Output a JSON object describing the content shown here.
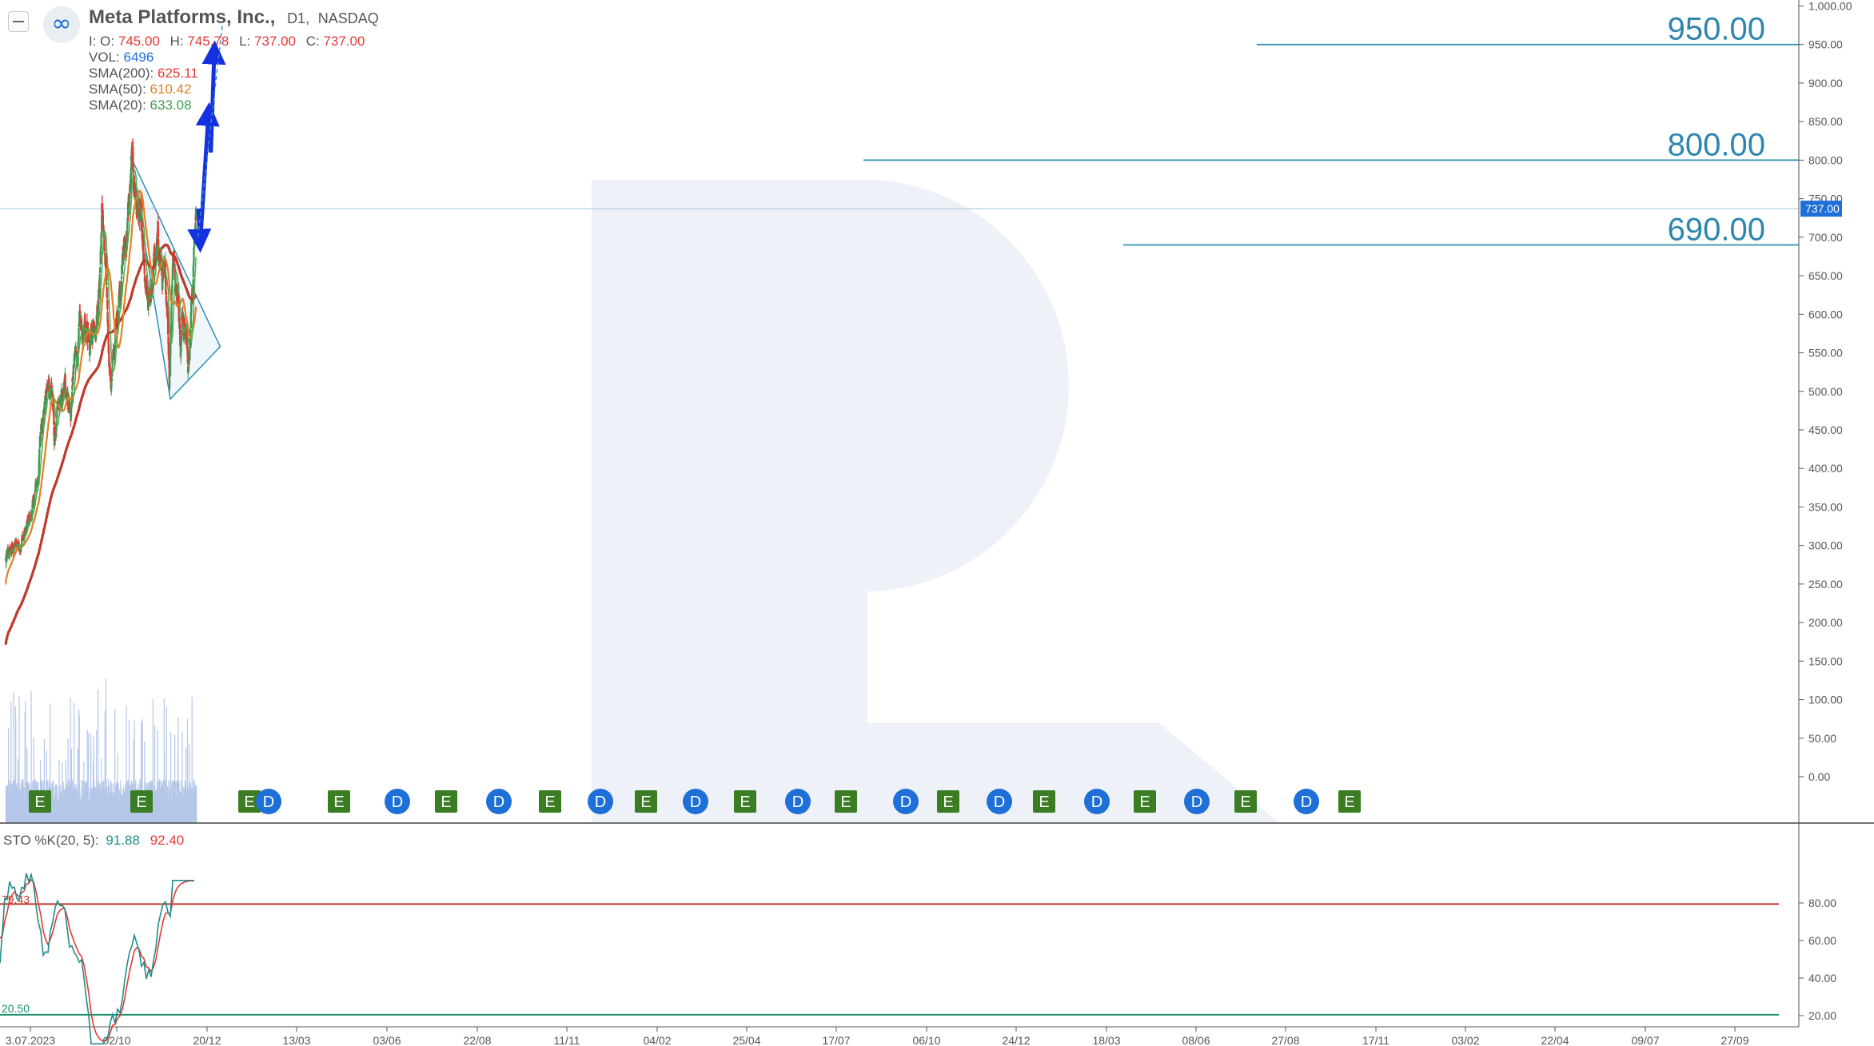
{
  "header": {
    "logo_glyph": "∞",
    "logo_icon": "meta-logo-icon",
    "menu_icon": "collapse-menu-icon",
    "company": "Meta Platforms, Inc.,",
    "timeframe": "D1,",
    "exchange": "NASDAQ",
    "ohlc": {
      "o_label": "I: O:",
      "o": "745.00",
      "h_label": "H:",
      "h": "745.78",
      "l_label": "L:",
      "l": "737.00",
      "c_label": "C:",
      "c": "737.00"
    },
    "vol_label": "VOL:",
    "vol": "6496",
    "sma200_label": "SMA(200):",
    "sma200": "625.11",
    "sma50_label": "SMA(50):",
    "sma50": "610.42",
    "sma20_label": "SMA(20):",
    "sma20": "633.08"
  },
  "stochastic": {
    "label": "STO %K(20, 5):",
    "k": "91.88",
    "d": "92.40",
    "upper_line_label": "79.43",
    "lower_line_label": "20.50",
    "upper_level": 79.43,
    "lower_level": 20.5
  },
  "colors": {
    "sma200": "#c0392b",
    "sma50": "#e67e22",
    "sma20": "#4caf50",
    "candle_up": "#3c9b54",
    "candle_down": "#e53935",
    "level_lines": "#2e8fb3",
    "target_text": "#2d86ad",
    "triangle_fill": "#e3f0f7",
    "arrows": "#1430e0",
    "earnings_badge": "#3a7d22",
    "dividend_badge": "#1e6fd8",
    "volume": "#b5c7e8",
    "price_tag": "#1e6fd8"
  },
  "chart_data": {
    "type": "candlestick",
    "title": "Meta Platforms, Inc., D1, NASDAQ",
    "x_tick_labels": [
      "3.07.2023",
      "02/10",
      "20/12",
      "13/03",
      "03/06",
      "22/08",
      "11/11",
      "04/02",
      "25/04",
      "17/07",
      "06/10",
      "24/12",
      "18/03",
      "08/06",
      "27/08",
      "17/11",
      "03/02",
      "22/04",
      "09/07",
      "27/09"
    ],
    "y_tick_labels": [
      "1,000.00",
      "950.00",
      "900.00",
      "850.00",
      "800.00",
      "750.00",
      "700.00",
      "650.00",
      "600.00",
      "550.00",
      "500.00",
      "450.00",
      "400.00",
      "350.00",
      "300.00",
      "250.00",
      "200.00",
      "150.00",
      "100.00",
      "50.00",
      "0.00"
    ],
    "ylim": [
      0,
      1000
    ],
    "last_price_label": "737.00",
    "last_price": 737,
    "sma_series": [
      {
        "name": "SMA(200)",
        "last": 625.11
      },
      {
        "name": "SMA(50)",
        "last": 610.42
      },
      {
        "name": "SMA(20)",
        "last": 633.08
      }
    ],
    "price_path": [
      {
        "date": "2023-07-03",
        "price": 280
      },
      {
        "date": "2023-08-15",
        "price": 295
      },
      {
        "date": "2023-10-02",
        "price": 305
      },
      {
        "date": "2023-11-10",
        "price": 320
      },
      {
        "date": "2023-12-20",
        "price": 350
      },
      {
        "date": "2024-01-20",
        "price": 395
      },
      {
        "date": "2024-02-10",
        "price": 470
      },
      {
        "date": "2024-03-13",
        "price": 500
      },
      {
        "date": "2024-04-10",
        "price": 510
      },
      {
        "date": "2024-04-26",
        "price": 435
      },
      {
        "date": "2024-05-20",
        "price": 470
      },
      {
        "date": "2024-06-03",
        "price": 475
      },
      {
        "date": "2024-07-10",
        "price": 510
      },
      {
        "date": "2024-08-05",
        "price": 470
      },
      {
        "date": "2024-08-22",
        "price": 525
      },
      {
        "date": "2024-09-25",
        "price": 570
      },
      {
        "date": "2024-11-11",
        "price": 580
      },
      {
        "date": "2024-12-20",
        "price": 590
      },
      {
        "date": "2025-01-20",
        "price": 610
      },
      {
        "date": "2025-02-14",
        "price": 737
      },
      {
        "date": "2025-03-10",
        "price": 625
      },
      {
        "date": "2025-04-07",
        "price": 510
      },
      {
        "date": "2025-04-25",
        "price": 540
      },
      {
        "date": "2025-05-30",
        "price": 640
      },
      {
        "date": "2025-07-17",
        "price": 710
      },
      {
        "date": "2025-08-15",
        "price": 790
      },
      {
        "date": "2025-09-10",
        "price": 750
      },
      {
        "date": "2025-10-06",
        "price": 715
      },
      {
        "date": "2025-11-05",
        "price": 620
      },
      {
        "date": "2025-11-25",
        "price": 600
      },
      {
        "date": "2025-12-24",
        "price": 660
      },
      {
        "date": "2026-01-25",
        "price": 690
      },
      {
        "date": "2026-02-20",
        "price": 640
      },
      {
        "date": "2026-03-18",
        "price": 620
      },
      {
        "date": "2026-04-01",
        "price": 525
      },
      {
        "date": "2026-04-20",
        "price": 680
      },
      {
        "date": "2026-05-20",
        "price": 640
      },
      {
        "date": "2026-06-08",
        "price": 560
      },
      {
        "date": "2026-07-05",
        "price": 620
      },
      {
        "date": "2026-07-25",
        "price": 540
      },
      {
        "date": "2026-08-10",
        "price": 600
      },
      {
        "date": "2026-08-27",
        "price": 670
      },
      {
        "date": "2026-09-10",
        "price": 737
      }
    ],
    "levels": [
      {
        "label": "950.00",
        "price": 950
      },
      {
        "label": "800.00",
        "price": 800
      },
      {
        "label": "690.00",
        "price": 690
      }
    ],
    "triangle": {
      "vertices": [
        {
          "date": "2025-08-05",
          "price": 805
        },
        {
          "date": "2026-04-06",
          "price": 490
        },
        {
          "date": "2027-02-05",
          "price": 558
        }
      ]
    },
    "forecast_arrows": [
      {
        "from": {
          "date": "2026-09-25",
          "price": 737
        },
        "to": {
          "date": "2026-10-05",
          "price": 690
        }
      },
      {
        "from": {
          "date": "2026-10-05",
          "price": 690
        },
        "to": {
          "date": "2026-11-27",
          "price": 865
        }
      },
      {
        "from": {
          "date": "2026-11-27",
          "price": 865
        },
        "to": {
          "date": "2026-12-10",
          "price": 810
        }
      },
      {
        "from": {
          "date": "2026-12-10",
          "price": 810
        },
        "to": {
          "date": "2027-01-01",
          "price": 945
        }
      }
    ],
    "event_markers": [
      "E",
      "E",
      "E",
      "D",
      "E",
      "D",
      "E",
      "D",
      "E",
      "D",
      "E",
      "D",
      "E",
      "D",
      "E",
      "D",
      "E",
      "D",
      "E",
      "D",
      "E",
      "D",
      "E",
      "D",
      "E"
    ],
    "stochastic_tick_labels": [
      "80.00",
      "60.00",
      "40.00",
      "20.00"
    ],
    "stochastic_ylim": [
      0,
      100
    ]
  }
}
